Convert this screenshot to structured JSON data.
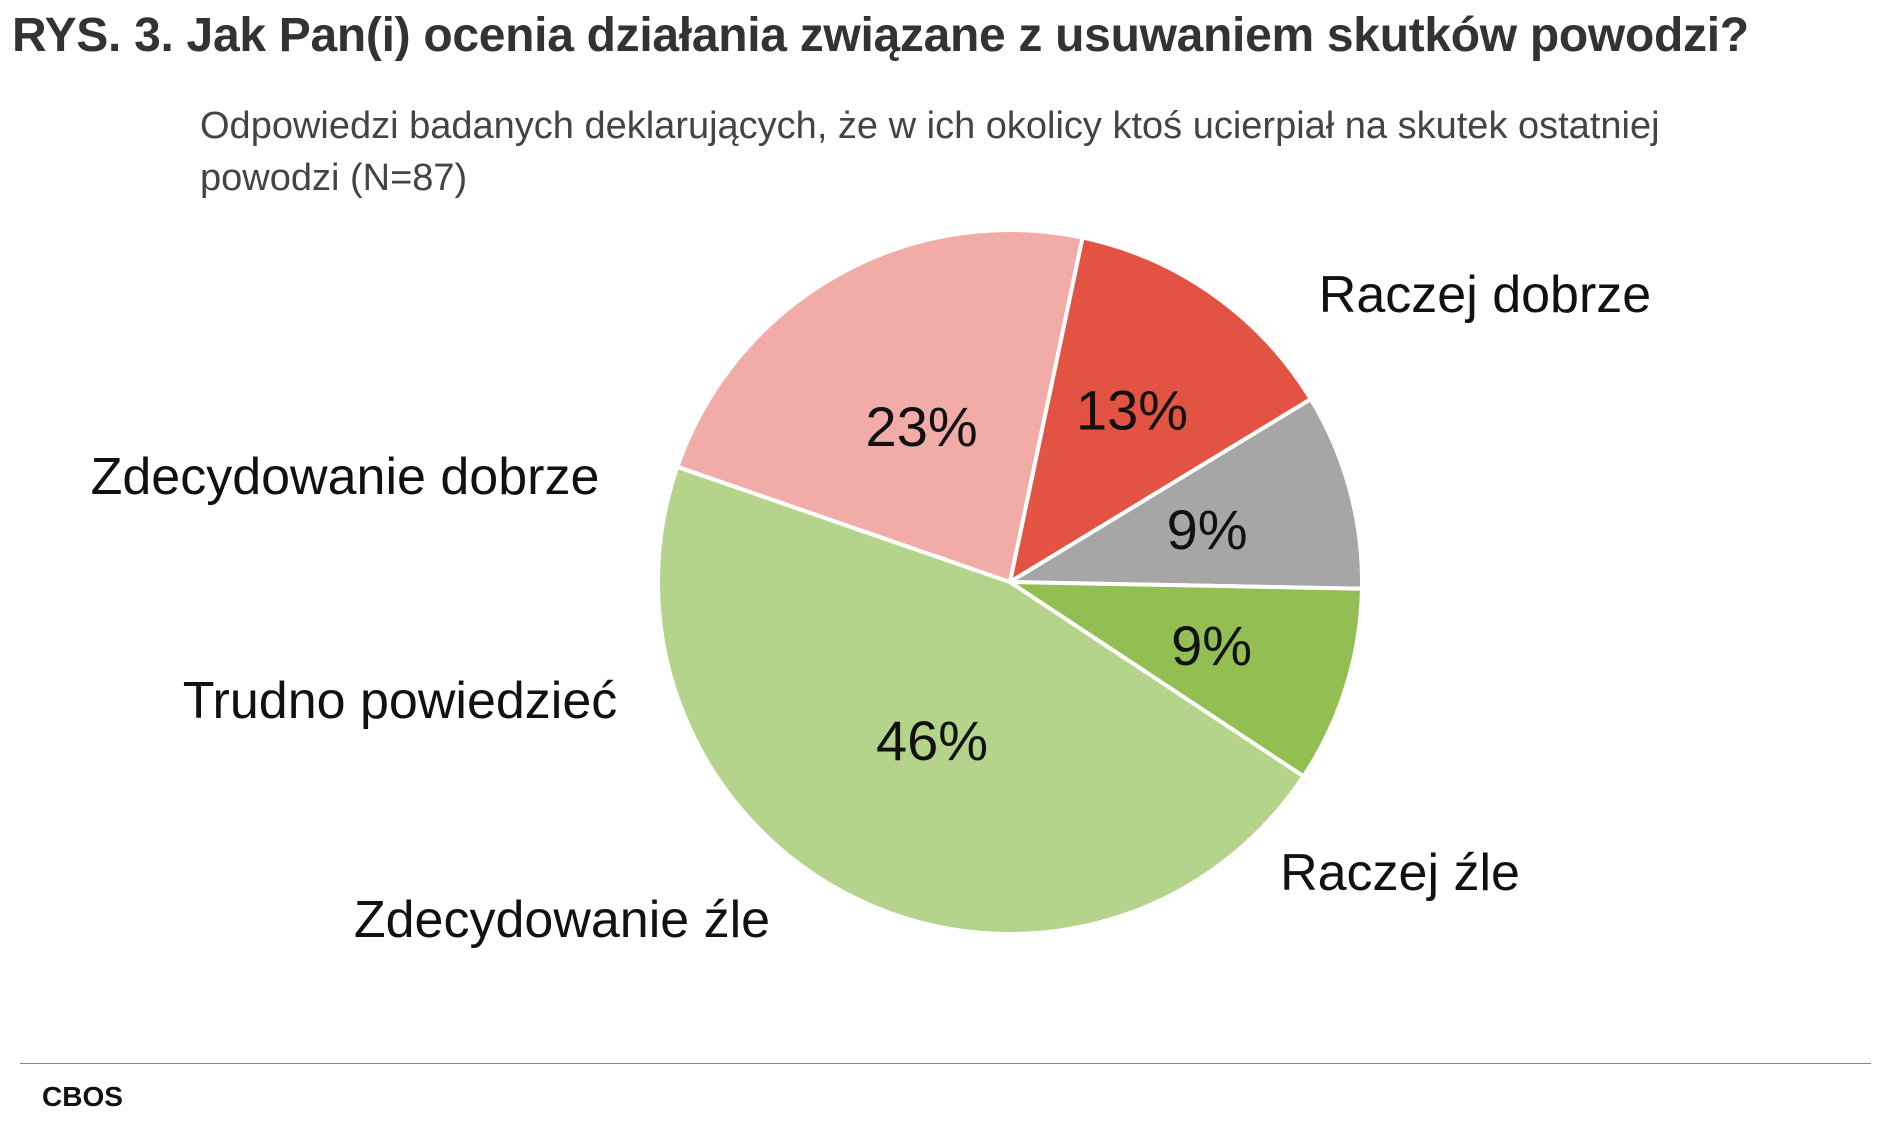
{
  "chart_data": {
    "type": "pie",
    "title": "RYS. 3. Jak Pan(i) ocenia działania związane z usuwaniem skutków powodzi?",
    "subtitle": "Odpowiedzi badanych deklarujących, że w ich okolicy ktoś ucierpiał na skutek ostatniej powodzi (N=87)",
    "slices": [
      {
        "label": "Raczej dobrze",
        "value": 46,
        "value_label": "46%",
        "color": "#b3d48a"
      },
      {
        "label": "Raczej źle",
        "value": 23,
        "value_label": "23%",
        "color": "#f2aca7"
      },
      {
        "label": "Zdecydowanie źle",
        "value": 13,
        "value_label": "13%",
        "color": "#e35344"
      },
      {
        "label": "Trudno powiedzieć",
        "value": 9,
        "value_label": "9%",
        "color": "#a6a6a6"
      },
      {
        "label": "Zdecydowanie dobrze",
        "value": 9,
        "value_label": "9%",
        "color": "#93be52"
      }
    ]
  },
  "source": "CBOS"
}
